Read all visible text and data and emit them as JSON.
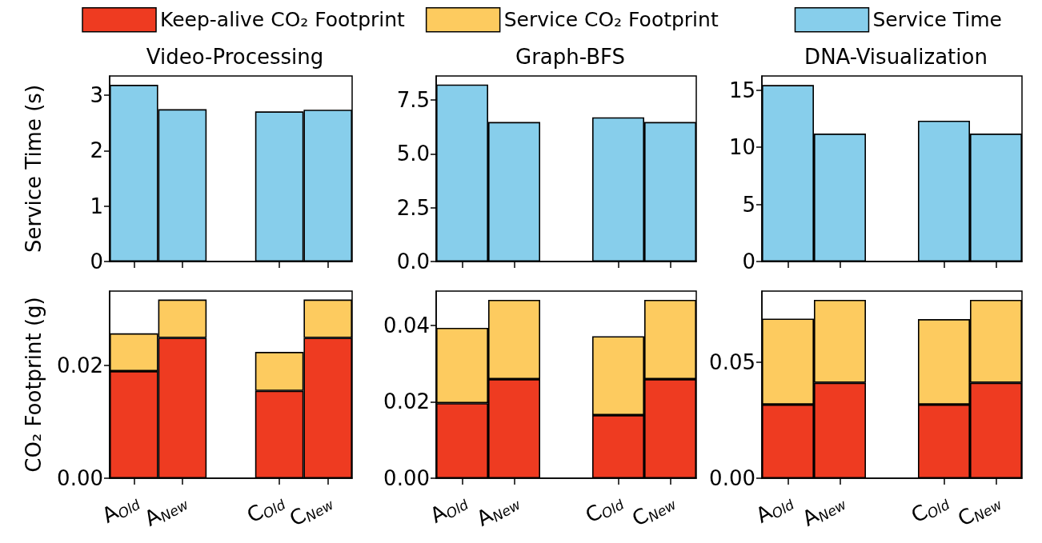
{
  "chart_data": [
    {
      "type": "bar",
      "title": "Video-Processing",
      "ylabel": "Service Time (s)",
      "categories": [
        null,
        null,
        null,
        null,
        null
      ],
      "tick_labels": "y",
      "series": [
        {
          "color": "#87ceeb",
          "values": [
            3.19,
            2.75,
            null,
            2.71,
            2.74
          ]
        }
      ],
      "ylim": [
        0,
        3.35
      ],
      "yticks": [
        0,
        1,
        2,
        3
      ]
    },
    {
      "type": "bar",
      "title": "Graph-BFS",
      "categories": [
        null,
        null,
        null,
        null,
        null
      ],
      "tick_labels": "y",
      "series": [
        {
          "color": "#87ceeb",
          "values": [
            8.22,
            6.48,
            null,
            6.7,
            6.48
          ]
        }
      ],
      "ylim": [
        0,
        8.62
      ],
      "yticks": [
        {
          "value": 0,
          "label": "0.0"
        },
        {
          "value": 2.5,
          "label": "2.5"
        },
        {
          "value": 5,
          "label": "5.0"
        },
        {
          "value": 7.5,
          "label": "7.5"
        }
      ]
    },
    {
      "type": "bar",
      "title": "DNA-Visualization",
      "categories": [
        null,
        null,
        null,
        null,
        null
      ],
      "tick_labels": "y",
      "legend": "top right",
      "series": [
        {
          "name": "Service Time",
          "color": "#87ceeb",
          "values": [
            15.46,
            11.2,
            null,
            12.33,
            11.2
          ]
        }
      ],
      "ylim": [
        0,
        16.25
      ],
      "yticks": [
        0,
        5,
        10,
        15
      ]
    },
    {
      "type": "bar",
      "ylabel": "CO₂ Footprint (g)",
      "categories": [
        "A$_{Old}$",
        "A$_{New}$",
        null,
        "C$_{Old}$",
        "C$_{New}$"
      ],
      "stacked": true,
      "legend": "top",
      "series": [
        {
          "name": "Keep-alive CO₂ Footprint",
          "color": "#ee3b21",
          "values": [
            0.019,
            0.0249,
            null,
            0.0155,
            0.0249
          ]
        },
        {
          "name": "Service CO₂ Footprint",
          "color": "#fdcb5f",
          "values": [
            0.0067,
            0.0068,
            null,
            0.0069,
            0.0068
          ]
        }
      ],
      "ylim": [
        0,
        0.0332
      ],
      "yticks": [
        {
          "value": 0,
          "label": "0.00"
        },
        {
          "value": 0.02,
          "label": "0.02"
        }
      ]
    },
    {
      "type": "bar",
      "categories": [
        "A$_{Old}$",
        "A$_{New}$",
        null,
        "C$_{Old}$",
        "C$_{New}$"
      ],
      "stacked": true,
      "series": [
        {
          "color": "#ee3b21",
          "values": [
            0.0196,
            0.0259,
            null,
            0.0165,
            0.0259
          ]
        },
        {
          "color": "#fdcb5f",
          "values": [
            0.0197,
            0.0207,
            null,
            0.0206,
            0.0207
          ]
        }
      ],
      "ylim": [
        0,
        0.0489
      ],
      "yticks": [
        {
          "value": 0,
          "label": "0.00"
        },
        {
          "value": 0.02,
          "label": "0.02"
        },
        {
          "value": 0.04,
          "label": "0.04"
        }
      ]
    },
    {
      "type": "bar",
      "categories": [
        "A$_{Old}$",
        "A$_{New}$",
        null,
        "C$_{Old}$",
        "C$_{New}$"
      ],
      "stacked": true,
      "series": [
        {
          "color": "#ee3b21",
          "values": [
            0.0318,
            0.0412,
            null,
            0.0318,
            0.0412
          ]
        },
        {
          "color": "#fdcb5f",
          "values": [
            0.0371,
            0.0358,
            null,
            0.0369,
            0.0358
          ]
        }
      ],
      "ylim": [
        0,
        0.0808
      ],
      "yticks": [
        {
          "value": 0,
          "label": "0.00"
        },
        {
          "value": 0.05,
          "label": "0.05"
        }
      ]
    }
  ]
}
